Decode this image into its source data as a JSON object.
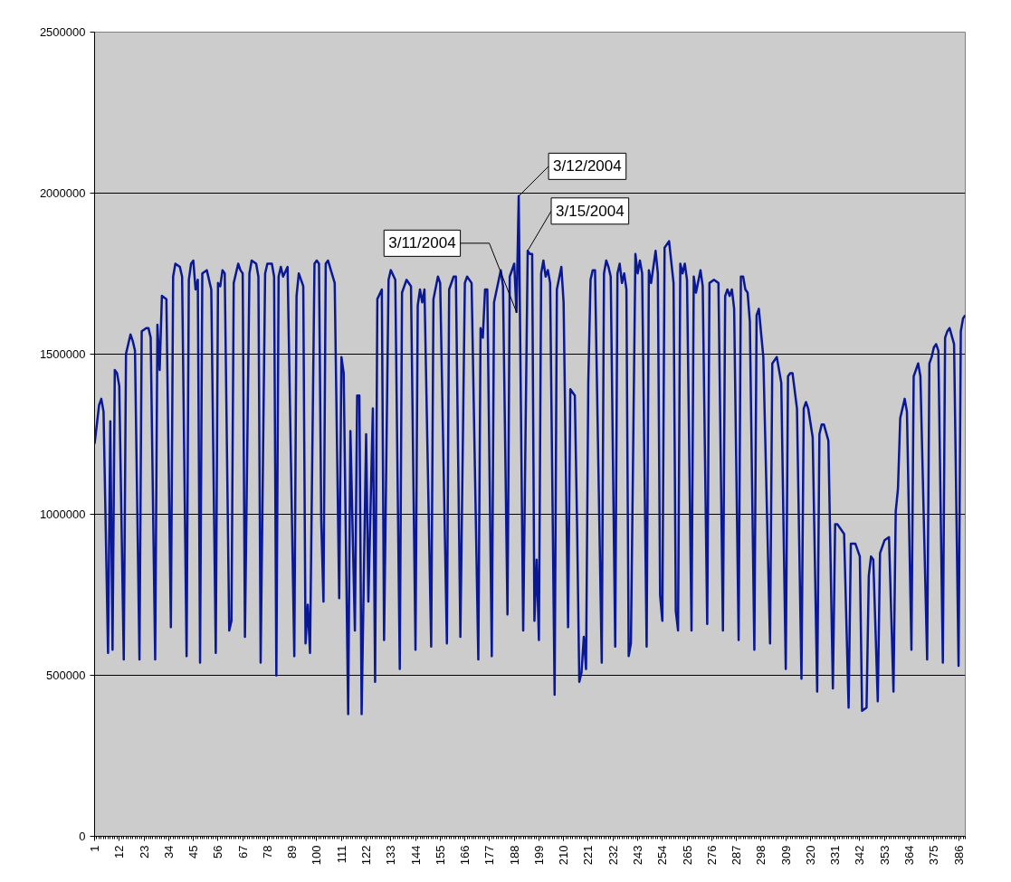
{
  "chart_data": {
    "type": "line",
    "xlim": [
      1,
      389
    ],
    "xticks": [
      1,
      12,
      23,
      34,
      45,
      56,
      67,
      78,
      89,
      100,
      111,
      122,
      133,
      144,
      155,
      166,
      177,
      188,
      199,
      210,
      221,
      232,
      243,
      254,
      265,
      276,
      287,
      298,
      309,
      320,
      331,
      342,
      353,
      364,
      375,
      386
    ],
    "ylim": [
      0,
      2500000
    ],
    "yticks": [
      0,
      500000,
      1000000,
      1500000,
      2000000,
      2500000
    ],
    "grid": "y",
    "annotations": [
      {
        "text": "3/11/2004",
        "x": 189,
        "y": 1630000
      },
      {
        "text": "3/12/2004",
        "x": 190,
        "y": 1990000
      },
      {
        "text": "3/15/2004",
        "x": 194,
        "y": 1820000
      }
    ],
    "series": [
      {
        "color": "#0a1896",
        "x": [
          1,
          3,
          4,
          5,
          7,
          8,
          9,
          10,
          11,
          12,
          14,
          15,
          17,
          18,
          19,
          21,
          22,
          24,
          25,
          26,
          28,
          29,
          30,
          31,
          33,
          35,
          36,
          37,
          39,
          40,
          42,
          43,
          44,
          45,
          46,
          47,
          48,
          49,
          51,
          53,
          55,
          56,
          57,
          58,
          59,
          61,
          62,
          63,
          65,
          66,
          67,
          68,
          70,
          71,
          73,
          74,
          75,
          77,
          78,
          80,
          81,
          82,
          83,
          84,
          85,
          87,
          90,
          91,
          92,
          94,
          95,
          96,
          97,
          99,
          100,
          101,
          102,
          103,
          104,
          105,
          108,
          110,
          111,
          112,
          114,
          115,
          117,
          118,
          119,
          120,
          122,
          123,
          125,
          126,
          127,
          129,
          130,
          132,
          133,
          135,
          137,
          138,
          140,
          142,
          144,
          145,
          146,
          147,
          148,
          151,
          152,
          154,
          155,
          158,
          159,
          161,
          162,
          164,
          166,
          167,
          169,
          172,
          173,
          174,
          175,
          176,
          178,
          179,
          182,
          183,
          185,
          186,
          188,
          189,
          190,
          192,
          194,
          195,
          196,
          197,
          198,
          199,
          200,
          201,
          202,
          203,
          204,
          206,
          207,
          209,
          210,
          212,
          213,
          215,
          216,
          217,
          218,
          219,
          220,
          221,
          222,
          223,
          224,
          227,
          228,
          229,
          230,
          231,
          233,
          234,
          235,
          236,
          237,
          238,
          239,
          240,
          242,
          243,
          244,
          245,
          247,
          248,
          249,
          251,
          252,
          253,
          254,
          255,
          257,
          259,
          260,
          261,
          262,
          263,
          264,
          265,
          267,
          268,
          269,
          271,
          272,
          274,
          275,
          277,
          279,
          281,
          282,
          283,
          284,
          285,
          286,
          288,
          289,
          290,
          291,
          292,
          293,
          295,
          296,
          297,
          299,
          302,
          303,
          304,
          305,
          307,
          309,
          310,
          311,
          312,
          314,
          316,
          317,
          318,
          319,
          321,
          323,
          324,
          325,
          326,
          328,
          330,
          331,
          332,
          335,
          337,
          338,
          340,
          342,
          343,
          345,
          346,
          347,
          348,
          350,
          351,
          353,
          355,
          357,
          358,
          359,
          360,
          362,
          363,
          365,
          366,
          367,
          368,
          369,
          372,
          373,
          374,
          375,
          376,
          377,
          379,
          380,
          381,
          382,
          384,
          386,
          387,
          388,
          389
        ],
        "values": [
          1220000,
          1340000,
          1360000,
          1320000,
          570000,
          1290000,
          580000,
          1450000,
          1440000,
          1400000,
          550000,
          1500000,
          1560000,
          1540000,
          1510000,
          550000,
          1570000,
          1580000,
          1580000,
          1550000,
          550000,
          1590000,
          1450000,
          1680000,
          1670000,
          650000,
          1740000,
          1780000,
          1770000,
          1740000,
          560000,
          1730000,
          1780000,
          1790000,
          1700000,
          1730000,
          540000,
          1750000,
          1760000,
          1700000,
          570000,
          1720000,
          1710000,
          1760000,
          1750000,
          640000,
          670000,
          1720000,
          1780000,
          1760000,
          1750000,
          620000,
          1750000,
          1790000,
          1780000,
          1740000,
          540000,
          1750000,
          1780000,
          1780000,
          1740000,
          500000,
          1740000,
          1770000,
          1740000,
          1770000,
          560000,
          1680000,
          1750000,
          1710000,
          600000,
          720000,
          570000,
          1780000,
          1790000,
          1780000,
          980000,
          730000,
          1780000,
          1790000,
          1720000,
          740000,
          1490000,
          1440000,
          380000,
          1260000,
          640000,
          1370000,
          1370000,
          380000,
          1250000,
          730000,
          1330000,
          480000,
          1670000,
          1700000,
          610000,
          1730000,
          1760000,
          1730000,
          520000,
          1690000,
          1730000,
          1710000,
          580000,
          1650000,
          1700000,
          1660000,
          1700000,
          590000,
          1670000,
          1740000,
          1720000,
          600000,
          1700000,
          1740000,
          1740000,
          620000,
          1720000,
          1740000,
          1720000,
          550000,
          1580000,
          1550000,
          1700000,
          1700000,
          560000,
          1660000,
          1760000,
          1710000,
          690000,
          1740000,
          1780000,
          1630000,
          1990000,
          640000,
          1820000,
          1810000,
          1810000,
          670000,
          860000,
          610000,
          1750000,
          1790000,
          1740000,
          1760000,
          1720000,
          440000,
          1700000,
          1770000,
          1660000,
          650000,
          1390000,
          1370000,
          970000,
          480000,
          510000,
          620000,
          520000,
          1410000,
          1730000,
          1760000,
          1760000,
          540000,
          1750000,
          1790000,
          1770000,
          1740000,
          590000,
          1750000,
          1780000,
          1720000,
          1750000,
          1700000,
          560000,
          600000,
          1810000,
          1750000,
          1790000,
          1750000,
          590000,
          1760000,
          1720000,
          1820000,
          1750000,
          750000,
          670000,
          1830000,
          1850000,
          1720000,
          700000,
          640000,
          1780000,
          1750000,
          1780000,
          1730000,
          640000,
          1740000,
          1690000,
          1760000,
          1710000,
          660000,
          1720000,
          1730000,
          1720000,
          640000,
          1680000,
          1700000,
          1680000,
          1700000,
          1640000,
          610000,
          1740000,
          1740000,
          1700000,
          1690000,
          1600000,
          580000,
          1620000,
          1640000,
          1490000,
          600000,
          1470000,
          1480000,
          1490000,
          1410000,
          520000,
          1430000,
          1440000,
          1440000,
          1330000,
          490000,
          1330000,
          1350000,
          1330000,
          1240000,
          450000,
          1250000,
          1280000,
          1280000,
          1230000,
          460000,
          970000,
          970000,
          940000,
          400000,
          910000,
          910000,
          870000,
          390000,
          400000,
          810000,
          870000,
          860000,
          420000,
          880000,
          920000,
          930000,
          450000,
          1010000,
          1080000,
          1300000,
          1360000,
          1320000,
          580000,
          1430000,
          1450000,
          1470000,
          1430000,
          550000,
          1470000,
          1490000,
          1520000,
          1530000,
          1510000,
          540000,
          1550000,
          1570000,
          1580000,
          1530000,
          530000,
          1570000,
          1610000,
          1620000
        ]
      }
    ]
  }
}
